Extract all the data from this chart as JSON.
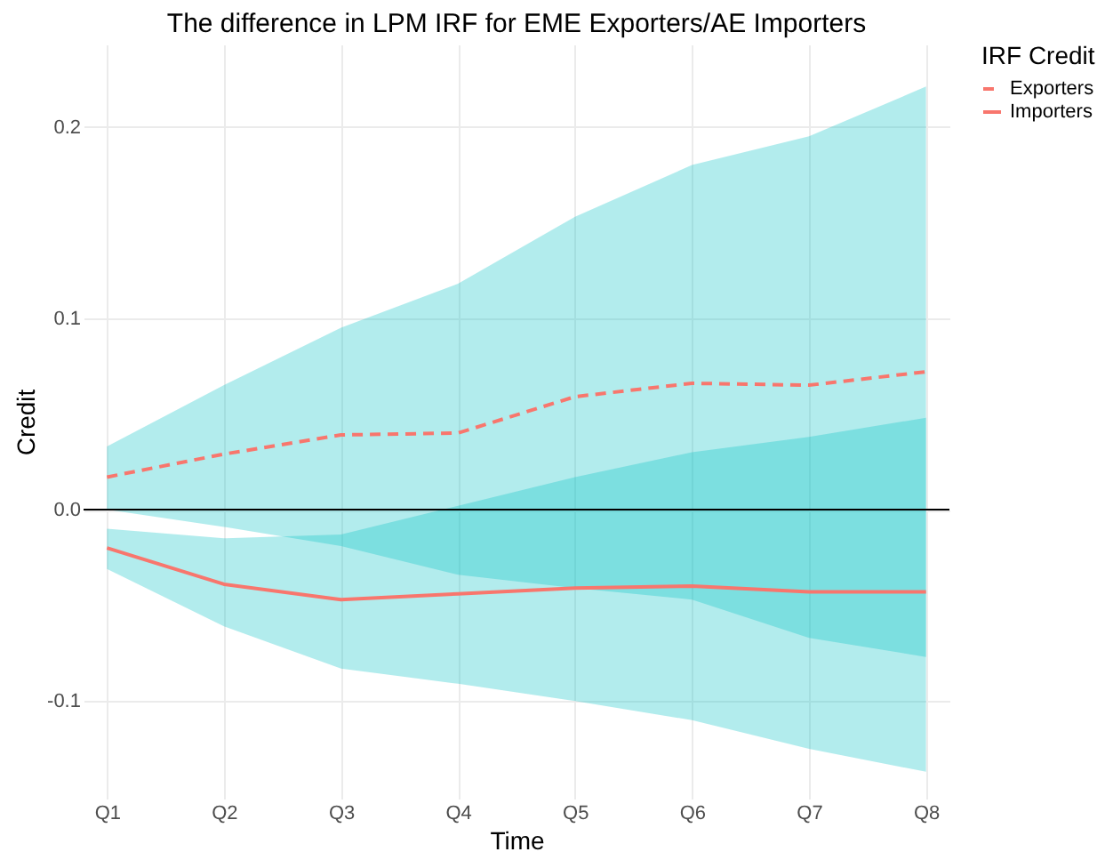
{
  "chart_data": {
    "type": "line",
    "title": "The difference in LPM IRF for EME Exporters/AE Importers",
    "xlabel": "Time",
    "ylabel": "Credit",
    "legend_title": "IRF Credit",
    "categories": [
      "Q1",
      "Q2",
      "Q3",
      "Q4",
      "Q5",
      "Q6",
      "Q7",
      "Q8"
    ],
    "series": [
      {
        "name": "Exporters",
        "color": "#f8766d",
        "line_style": "dashed",
        "values": [
          0.017,
          0.029,
          0.039,
          0.04,
          0.059,
          0.066,
          0.065,
          0.072
        ],
        "lower": [
          0.0,
          -0.009,
          -0.019,
          -0.034,
          -0.041,
          -0.047,
          -0.067,
          -0.077
        ],
        "upper": [
          0.033,
          0.065,
          0.095,
          0.118,
          0.153,
          0.18,
          0.195,
          0.221
        ]
      },
      {
        "name": "Importers",
        "color": "#f8766d",
        "line_style": "solid",
        "values": [
          -0.02,
          -0.039,
          -0.047,
          -0.044,
          -0.041,
          -0.04,
          -0.043,
          -0.043
        ],
        "lower": [
          -0.031,
          -0.061,
          -0.083,
          -0.091,
          -0.1,
          -0.11,
          -0.125,
          -0.137
        ],
        "upper": [
          -0.01,
          -0.015,
          -0.013,
          0.002,
          0.017,
          0.03,
          0.038,
          0.048
        ]
      }
    ],
    "ref_lines": [
      {
        "axis": "y",
        "value": 0,
        "color": "#000000"
      }
    ],
    "ylim": [
      -0.151,
      0.243
    ],
    "yticks": [
      {
        "value": -0.1,
        "label": "-0.1"
      },
      {
        "value": 0,
        "label": "0.0"
      },
      {
        "value": 0.1,
        "label": "0.1"
      },
      {
        "value": 0.2,
        "label": "0.2"
      }
    ],
    "grid": true,
    "legend": "right"
  }
}
